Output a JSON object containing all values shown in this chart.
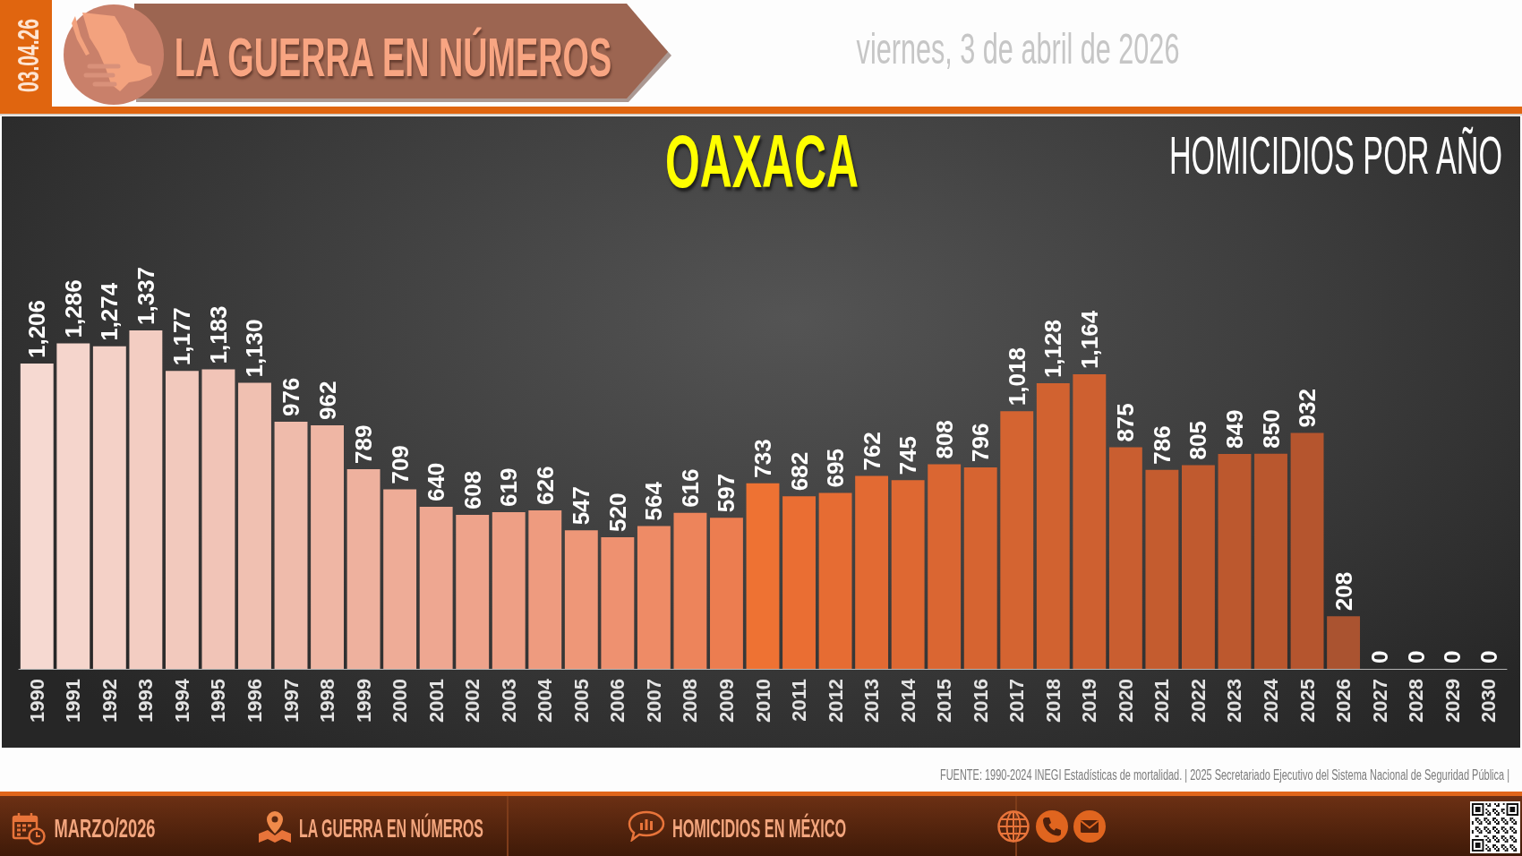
{
  "chart_data": {
    "type": "bar",
    "title": "OAXACA",
    "subtitle": "HOMICIDIOS POR AÑO",
    "categories": [
      "1990",
      "1991",
      "1992",
      "1993",
      "1994",
      "1995",
      "1996",
      "1997",
      "1998",
      "1999",
      "2000",
      "2001",
      "2002",
      "2003",
      "2004",
      "2005",
      "2006",
      "2007",
      "2008",
      "2009",
      "2010",
      "2011",
      "2012",
      "2013",
      "2014",
      "2015",
      "2016",
      "2017",
      "2018",
      "2019",
      "2020",
      "2021",
      "2022",
      "2023",
      "2024",
      "2025",
      "2026",
      "2027",
      "2028",
      "2029",
      "2030"
    ],
    "values": [
      1206,
      1286,
      1274,
      1337,
      1177,
      1183,
      1130,
      976,
      962,
      789,
      709,
      640,
      608,
      619,
      626,
      547,
      520,
      564,
      616,
      597,
      733,
      682,
      695,
      762,
      745,
      808,
      796,
      1018,
      1128,
      1164,
      875,
      786,
      805,
      849,
      850,
      932,
      208,
      0,
      0,
      0,
      0
    ],
    "value_labels": [
      "1,206",
      "1,286",
      "1,274",
      "1,337",
      "1,177",
      "1,183",
      "1,130",
      "976",
      "962",
      "789",
      "709",
      "640",
      "608",
      "619",
      "626",
      "547",
      "520",
      "564",
      "616",
      "597",
      "733",
      "682",
      "695",
      "762",
      "745",
      "808",
      "796",
      "1,018",
      "1,128",
      "1,164",
      "875",
      "786",
      "805",
      "849",
      "850",
      "932",
      "208",
      "0",
      "0",
      "0",
      "0"
    ],
    "colors": [
      "#f6d9d1",
      "#f5d5cc",
      "#f4d1c7",
      "#f3cdc2",
      "#f2c9bd",
      "#f1c4b7",
      "#f0c0b1",
      "#efbbab",
      "#efb6a4",
      "#eeb19e",
      "#eeac97",
      "#eea791",
      "#eea38b",
      "#ee9f85",
      "#ee9b7f",
      "#ee9778",
      "#ee9170",
      "#ee8b66",
      "#ed845b",
      "#ec7d50",
      "#ee7233",
      "#ea6e33",
      "#e66c33",
      "#e26a33",
      "#de6832",
      "#da6632",
      "#d66431",
      "#d46431",
      "#d16230",
      "#ce6030",
      "#c95e30",
      "#c45c2f",
      "#c05a2f",
      "#bc582e",
      "#b9572e",
      "#b5552e",
      "#aa5330",
      "#aa5330",
      "#aa5330",
      "#aa5330",
      "#aa5330"
    ],
    "annotations": [
      "03.04.26",
      "LA GUERRA EN NÚMEROS",
      "viernes, 3 de abril de 2026",
      "FUENTE: 1990-2024 INEGI Estadísticas de mortalidad. | 2025 Secretariado Ejecutivo del Sistema Nacional de Seguridad Pública |",
      "MARZO/2026",
      "LA GUERRA EN NÚMEROS",
      "HOMICIDIOS EN MÉXICO"
    ]
  }
}
